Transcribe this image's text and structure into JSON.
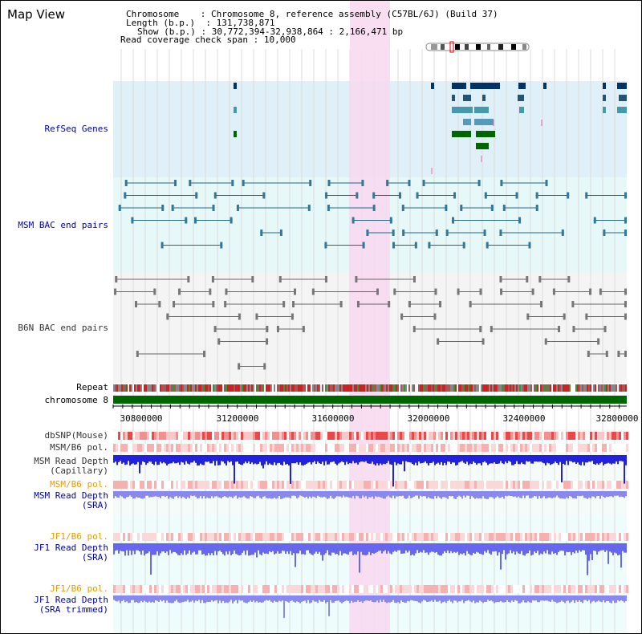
{
  "title": "Map View",
  "header": {
    "chromosome_label": "Chromosome",
    "chromosome_value": "Chromosome 8, reference assembly (C57BL/6J) (Build 37)",
    "length_label": "Length (b.p.)",
    "length_value": "131,738,871",
    "show_label": "Show (b.p.)",
    "show_value": "30,772,394-32,938,864 : 2,166,471 bp",
    "coverage_label": "Read coverage check span",
    "coverage_value": "10,000"
  },
  "tracks": {
    "refseq": "RefSeq Genes",
    "msm_bac": "MSM BAC end pairs",
    "b6n_bac": "B6N BAC end pairs",
    "repeat": "Repeat",
    "chromosome": "chromosome 8",
    "dbsnp": "dbSNP(Mouse)",
    "msm_b6_pol": "MSM/B6 pol.",
    "msm_depth_cap_1": "MSM Read Depth",
    "msm_depth_cap_2": "(Capillary)",
    "msm_b6_pol2": "MSM/B6 pol.",
    "msm_depth_sra_1": "MSM Read Depth",
    "msm_depth_sra_2": "(SRA)",
    "jf1_b6_pol": "JF1/B6 pol.",
    "jf1_depth_sra_1": "JF1 Read Depth",
    "jf1_depth_sra_2": "(SRA)",
    "jf1_b6_pol2": "JF1/B6 pol.",
    "jf1_depth_trim_1": "JF1 Read Depth",
    "jf1_depth_trim_2": "(SRA trimmed)"
  },
  "axis": {
    "ticks": [
      "30800000",
      "31200000",
      "31600000",
      "32000000",
      "32400000",
      "32800000"
    ]
  },
  "colors": {
    "label_blue": "#0000aa",
    "label_orange": "#ee9900",
    "label_gray": "#333333",
    "refseq_bg": "#dff0f8",
    "msm_bg": "#e6f8f8",
    "b6n_bg": "#f4f4f4",
    "highlight": "#f8d8f0",
    "chromosome_bar": "#006600"
  }
}
